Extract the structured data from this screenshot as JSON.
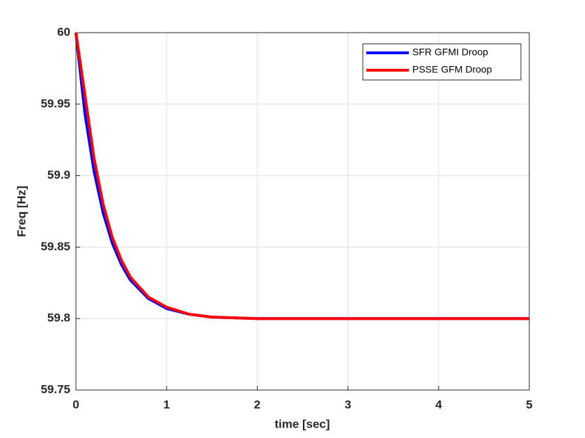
{
  "chart_data": {
    "type": "line",
    "xlabel": "time [sec]",
    "ylabel": "Freq [Hz]",
    "x": [
      0,
      0.1,
      0.2,
      0.3,
      0.4,
      0.5,
      0.6,
      0.8,
      1,
      1.25,
      1.5,
      2,
      2.5,
      3,
      4,
      5
    ],
    "series": [
      {
        "name": "SFR GFMI Droop",
        "color": "#0000ff",
        "values": [
          60,
          59.943,
          59.903,
          59.874,
          59.853,
          59.838,
          59.827,
          59.814,
          59.807,
          59.803,
          59.801,
          59.8,
          59.8,
          59.8,
          59.8,
          59.8
        ]
      },
      {
        "name": "PSSE GFM Droop",
        "color": "#ff0000",
        "values": [
          60,
          59.956,
          59.912,
          59.88,
          59.857,
          59.841,
          59.829,
          59.815,
          59.808,
          59.803,
          59.801,
          59.8,
          59.8,
          59.8,
          59.8,
          59.8
        ]
      }
    ],
    "xlim": [
      0,
      5
    ],
    "xticks": [
      0,
      1,
      2,
      3,
      4,
      5
    ],
    "ylim": [
      59.75,
      60
    ],
    "yticks": [
      59.75,
      59.8,
      59.85,
      59.9,
      59.95,
      60
    ],
    "grid": true,
    "legend": "upper right"
  }
}
